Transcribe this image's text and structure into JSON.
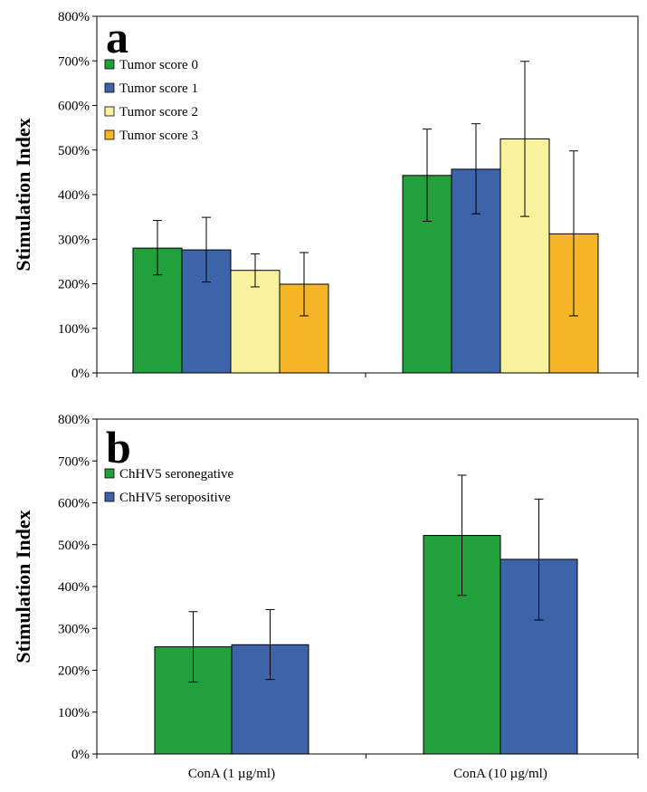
{
  "chart_data": [
    {
      "panel": "a",
      "type": "bar",
      "ylabel": "Stimulation Index",
      "ylim": [
        0,
        800
      ],
      "yticks": [
        "0%",
        "100%",
        "200%",
        "300%",
        "400%",
        "500%",
        "600%",
        "700%",
        "800%"
      ],
      "categories": [
        "ConA (1 µg/ml)",
        "ConA (10 µg/ml)"
      ],
      "show_category_labels": false,
      "legend_position": "top-left",
      "series": [
        {
          "name": "Tumor score 0",
          "color": "#22a03c",
          "values": [
            280,
            443
          ],
          "errors": [
            [
              220,
              342
            ],
            [
              340,
              547
            ]
          ]
        },
        {
          "name": "Tumor score 1",
          "color": "#3d63a8",
          "values": [
            276,
            457
          ],
          "errors": [
            [
              204,
              349
            ],
            [
              357,
              559
            ]
          ]
        },
        {
          "name": "Tumor score 2",
          "color": "#f8f29c",
          "values": [
            230,
            525
          ],
          "errors": [
            [
              193,
              267
            ],
            [
              351,
              699
            ]
          ]
        },
        {
          "name": "Tumor score 3",
          "color": "#f6b526",
          "values": [
            199,
            312
          ],
          "errors": [
            [
              128,
              270
            ],
            [
              128,
              498
            ]
          ]
        }
      ]
    },
    {
      "panel": "b",
      "type": "bar",
      "ylabel": "Stimulation Index",
      "ylim": [
        0,
        800
      ],
      "yticks": [
        "0%",
        "100%",
        "200%",
        "300%",
        "400%",
        "500%",
        "600%",
        "700%",
        "800%"
      ],
      "categories": [
        "ConA (1 µg/ml)",
        "ConA (10 µg/ml)"
      ],
      "show_category_labels": true,
      "legend_position": "top-left",
      "series": [
        {
          "name": "ChHV5 seronegative",
          "color": "#22a03c",
          "values": [
            256,
            522
          ],
          "errors": [
            [
              172,
              340
            ],
            [
              379,
              666
            ]
          ]
        },
        {
          "name": "ChHV5 seropositive",
          "color": "#3d63a8",
          "values": [
            261,
            465
          ],
          "errors": [
            [
              178,
              345
            ],
            [
              320,
              609
            ]
          ]
        }
      ]
    }
  ]
}
